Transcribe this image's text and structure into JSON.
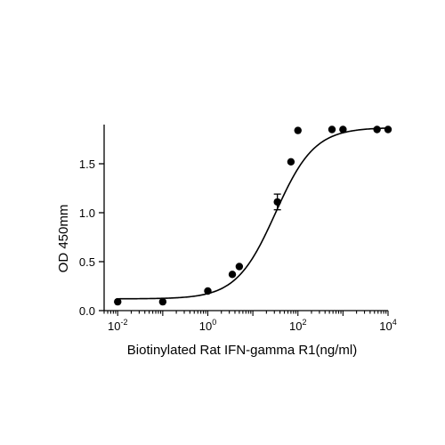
{
  "chart_data": {
    "type": "scatter",
    "xlabel": "Biotinylated Rat IFN-gamma R1(ng/ml)",
    "ylabel": "OD 450mm",
    "x_scale": "log",
    "xlim": [
      0.005,
      10000
    ],
    "ylim": [
      0,
      1.9
    ],
    "x_ticks": [
      {
        "value": 0.01,
        "base": "10",
        "exp": "-2"
      },
      {
        "value": 1,
        "base": "10",
        "exp": "0"
      },
      {
        "value": 100,
        "base": "10",
        "exp": "2"
      },
      {
        "value": 10000,
        "base": "10",
        "exp": "4"
      }
    ],
    "y_ticks": [
      {
        "value": 0.0,
        "label": "0.0"
      },
      {
        "value": 0.5,
        "label": "0.5"
      },
      {
        "value": 1.0,
        "label": "1.0"
      },
      {
        "value": 1.5,
        "label": "1.5"
      }
    ],
    "series": [
      {
        "x": [
          0.01,
          0.1,
          1,
          3.5,
          5,
          35,
          70,
          100,
          570,
          1000,
          5700,
          10000
        ],
        "y": [
          0.09,
          0.09,
          0.2,
          0.37,
          0.45,
          1.11,
          1.52,
          1.84,
          1.85,
          1.85,
          1.85,
          1.85
        ],
        "error": [
          0,
          0,
          0,
          0,
          0,
          0.08,
          0,
          0,
          0,
          0,
          0,
          0
        ]
      }
    ],
    "fit_curve": {
      "bottom": 0.12,
      "top": 1.87,
      "ec50": 31.6,
      "hill": 1.0
    },
    "grid": false,
    "color": "#000000"
  }
}
